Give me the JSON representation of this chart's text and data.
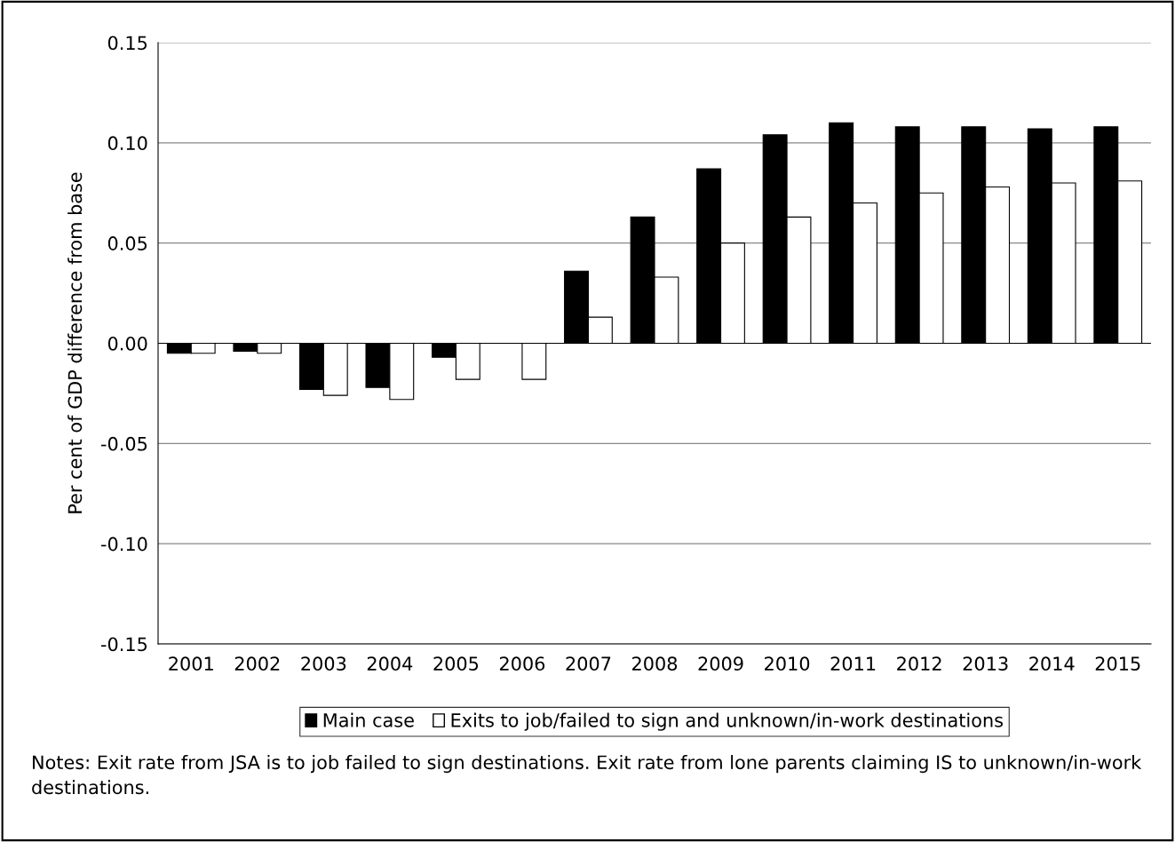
{
  "chart_data": {
    "type": "bar",
    "ylabel": "Per cent of GDP difference from base",
    "categories": [
      "2001",
      "2002",
      "2003",
      "2004",
      "2005",
      "2006",
      "2007",
      "2008",
      "2009",
      "2010",
      "2011",
      "2012",
      "2013",
      "2014",
      "2015"
    ],
    "series": [
      {
        "name": "Main case",
        "color": "#000000",
        "values": [
          -0.005,
          -0.004,
          -0.023,
          -0.022,
          -0.007,
          0.0,
          0.036,
          0.063,
          0.087,
          0.104,
          0.11,
          0.108,
          0.108,
          0.107,
          0.108
        ]
      },
      {
        "name": "Exits to job/failed to sign and unknown/in-work destinations",
        "color": "#ffffff",
        "values": [
          -0.005,
          -0.005,
          -0.026,
          -0.028,
          -0.018,
          -0.018,
          0.013,
          0.033,
          0.05,
          0.063,
          0.07,
          0.075,
          0.078,
          0.08,
          0.081
        ]
      }
    ],
    "ylim": [
      -0.15,
      0.15
    ],
    "yticks": [
      {
        "value": -0.15,
        "label": "-0.15"
      },
      {
        "value": -0.1,
        "label": "-0.10"
      },
      {
        "value": -0.05,
        "label": "-0.05"
      },
      {
        "value": 0,
        "label": "0.00"
      },
      {
        "value": 0.05,
        "label": "0.05"
      },
      {
        "value": 0.1,
        "label": "0.10"
      },
      {
        "value": 0.15,
        "label": "0.15"
      }
    ],
    "grid": "y",
    "legend": "bottom",
    "annotations": [
      "Notes: Exit rate from JSA is to job failed to sign destinations. Exit rate from lone parents claiming IS to unknown/in-work destinations."
    ]
  }
}
